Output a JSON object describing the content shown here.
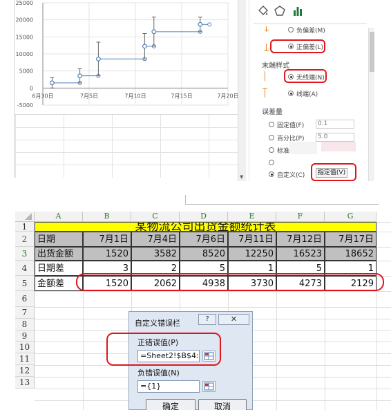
{
  "chart": {
    "chart_data": {
      "type": "scatter",
      "title": "",
      "y_ticks": [
        "25000",
        "20000",
        "15000",
        "10000",
        "5000",
        "0",
        "-5000"
      ],
      "x_ticks": [
        "6月30日",
        "7月5日",
        "7月10日",
        "7月15日",
        "7月20日"
      ],
      "xlim": [
        "6月30日",
        "7月20日"
      ],
      "ylim": [
        -5000,
        25000
      ],
      "gridlines": true,
      "series": [
        {
          "x": [
            "7月1日",
            "7月4日",
            "7月6日",
            "7月11日",
            "7月12日",
            "7月17日"
          ],
          "y": [
            1520,
            3582,
            8520,
            12250,
            16523,
            18652
          ],
          "x_error_plus_days": [
            3,
            2,
            5,
            1,
            5,
            1
          ],
          "y_error": [
            1520,
            2062,
            4938,
            3730,
            4273,
            2129
          ]
        }
      ]
    }
  },
  "pane": {
    "icons": [
      "fill-line-icon",
      "effects-icon",
      "series-options-icon"
    ],
    "direction_items": [
      {
        "label": "负偏差(M)",
        "selected": false
      },
      {
        "label": "正偏差(L)",
        "selected": true
      }
    ],
    "end_style_title": "末端样式",
    "end_style_items": [
      {
        "label": "无线端(N)",
        "selected": true
      },
      {
        "label": "线端(A)",
        "selected": false
      }
    ],
    "amount_title": "误差量",
    "amount_items": [
      {
        "label": "固定值(F)",
        "value": "0.1",
        "selected": false
      },
      {
        "label": "百分比(P)",
        "value": "5.0",
        "selected": false
      },
      {
        "label": "标准",
        "value": "",
        "selected": false
      },
      {
        "label": "",
        "value": "",
        "selected": false
      },
      {
        "label": "自定义(C)",
        "value": "",
        "selected": true
      }
    ],
    "specify_button": "指定值(V)"
  },
  "sheet": {
    "columns": [
      "A",
      "B",
      "C",
      "D",
      "E",
      "F",
      "G"
    ],
    "rows": [
      "1",
      "2",
      "3",
      "4",
      "5",
      "6",
      "7",
      "8",
      "9",
      "10",
      "11",
      "12",
      "13"
    ],
    "title": "某物流公司出货金额统计表",
    "data": [
      [
        "日期",
        "7月1日",
        "7月4日",
        "7月6日",
        "7月11日",
        "7月12日",
        "7月17日"
      ],
      [
        "出货金额",
        "1520",
        "3582",
        "8520",
        "12250",
        "16523",
        "18652"
      ],
      [
        "日期差",
        "3",
        "2",
        "5",
        "1",
        "5",
        "1"
      ],
      [
        "金额差",
        "1520",
        "2062",
        "4938",
        "3730",
        "4273",
        "2129"
      ]
    ]
  },
  "dialog": {
    "title": "自定义错误栏",
    "help": "?",
    "close": "✕",
    "plus_label": "正错误值(P)",
    "plus_value": "=Sheet2!$B$4:",
    "minus_label": "负错误值(N)",
    "minus_value": "={1}",
    "ok": "确定",
    "cancel": "取消"
  },
  "colors": {
    "title_fill": "#ffff00",
    "header_fill": "#c0c0c0",
    "highlight": "#e0161e",
    "series": "#4f81bd"
  }
}
